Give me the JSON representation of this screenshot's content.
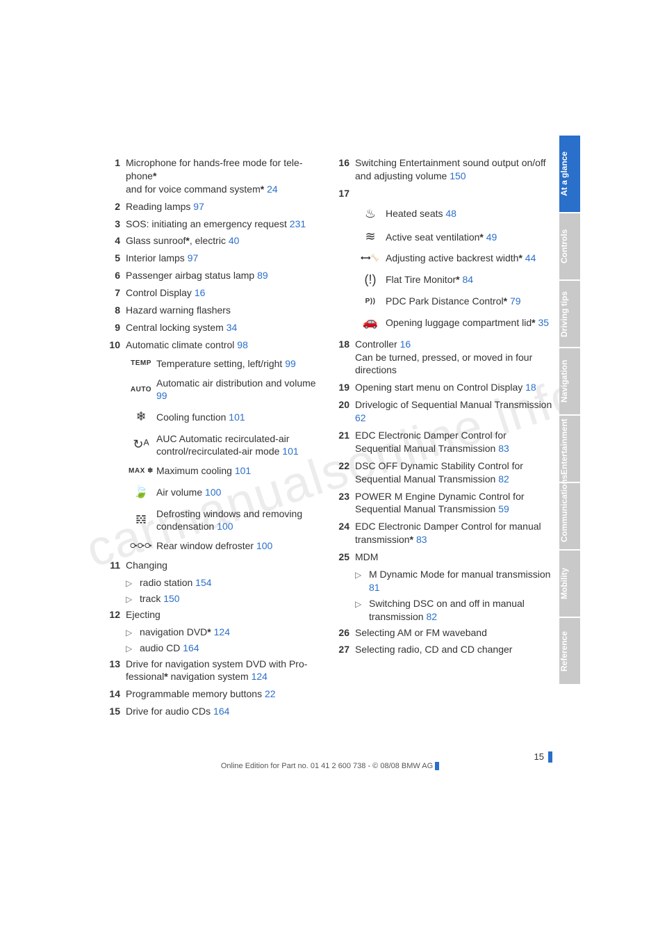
{
  "watermark": "carmanualsonline.info",
  "page_number": "15",
  "edition_line": "Online Edition for Part no. 01 41 2 600 738 - © 08/08 BMW AG",
  "link_color": "#2a6fc9",
  "tab_active_bg": "#2a6fc9",
  "tab_inactive_bg": "#c9c9c9",
  "tabs": [
    {
      "label": "At a glance",
      "active": true
    },
    {
      "label": "Controls",
      "active": false
    },
    {
      "label": "Driving tips",
      "active": false
    },
    {
      "label": "Navigation",
      "active": false
    },
    {
      "label": "Entertainment",
      "active": false
    },
    {
      "label": "Communications",
      "active": false
    },
    {
      "label": "Mobility",
      "active": false
    },
    {
      "label": "Reference",
      "active": false
    }
  ],
  "left_items": [
    {
      "n": "1",
      "text_a": "Microphone for hands-free mode for tele­phone",
      "star_a": true,
      "br": true,
      "text_b": "and for voice command system",
      "star_b": true,
      "page": "24"
    },
    {
      "n": "2",
      "text_a": "Reading lamps",
      "page": "97"
    },
    {
      "n": "3",
      "text_a": "SOS: initiating an emergency request",
      "page": "231"
    },
    {
      "n": "4",
      "text_a": "Glass sunroof",
      "star_a": true,
      "text_b": ", electric",
      "page": "40"
    },
    {
      "n": "5",
      "text_a": "Interior lamps",
      "page": "97"
    },
    {
      "n": "6",
      "text_a": "Passenger airbag status lamp",
      "page": "89"
    },
    {
      "n": "7",
      "text_a": "Control Display",
      "page": "16"
    },
    {
      "n": "8",
      "text_a": "Hazard warning flashers"
    },
    {
      "n": "9",
      "text_a": "Central locking system",
      "page": "34"
    },
    {
      "n": "10",
      "text_a": "Automatic climate control",
      "page": "98"
    }
  ],
  "climate_icons": [
    {
      "icon": "TEMP",
      "small": true,
      "text": "Temperature setting, left/right",
      "page": "99"
    },
    {
      "icon": "AUTO",
      "small": true,
      "text": "Automatic air distribution and volume",
      "page": "99"
    },
    {
      "icon": "❄",
      "text": "Cooling function",
      "page": "101"
    },
    {
      "icon": "↻ᴬ",
      "text": "AUC Automatic recirculated-air control/recirculated-air mode",
      "page": "101"
    },
    {
      "icon": "MAX ❄",
      "small": true,
      "text": "Maximum cooling",
      "page": "101"
    },
    {
      "icon": "🍃",
      "text": "Air volume",
      "page": "100"
    },
    {
      "icon": "𝌸",
      "text": "Defrosting windows and removing condensation",
      "page": "100"
    },
    {
      "icon": "⧂⧂⧂",
      "small": true,
      "text": "Rear window defroster",
      "page": "100"
    }
  ],
  "left_items2": [
    {
      "n": "11",
      "text_a": "Changing",
      "subs": [
        {
          "text": "radio station",
          "page": "154"
        },
        {
          "text": "track",
          "page": "150"
        }
      ]
    },
    {
      "n": "12",
      "text_a": "Ejecting",
      "subs": [
        {
          "text": "navigation DVD",
          "star": true,
          "page": "124"
        },
        {
          "text": "audio CD",
          "page": "164"
        }
      ]
    },
    {
      "n": "13",
      "text_a": "Drive for navigation system DVD with Pro­fessional",
      "star_a": true,
      "text_b": " navigation system",
      "page": "124"
    },
    {
      "n": "14",
      "text_a": "Programmable memory buttons",
      "page": "22"
    },
    {
      "n": "15",
      "text_a": "Drive for audio CDs",
      "page": "164"
    }
  ],
  "right_items_top": [
    {
      "n": "16",
      "text_a": "Switching Entertainment sound output on/off and adjusting volume",
      "page": "150"
    },
    {
      "n": "17",
      "text_a": ""
    }
  ],
  "seat_icons": [
    {
      "icon": "♨",
      "text": "Heated seats",
      "page": "48"
    },
    {
      "icon": "≋",
      "text": "Active seat ventilation",
      "star": true,
      "page": "49"
    },
    {
      "icon": "⟷🦴",
      "small": true,
      "text": "Adjusting active backrest width",
      "star": true,
      "page": "44"
    },
    {
      "icon": "(!)",
      "text": "Flat Tire Monitor",
      "star": true,
      "page": "84"
    },
    {
      "icon": "P))",
      "small": true,
      "text": "PDC Park Distance Control",
      "star": true,
      "page": "79"
    },
    {
      "icon": "🚗",
      "text": "Opening luggage compartment lid",
      "star": true,
      "page": "35"
    }
  ],
  "right_items": [
    {
      "n": "18",
      "text_a": "Controller",
      "page": "16",
      "after": "Can be turned, pressed, or moved in four directions"
    },
    {
      "n": "19",
      "text_a": "Opening start menu on Control Display",
      "page": "18"
    },
    {
      "n": "20",
      "text_a": "Drivelogic of Sequential Manual Transmission",
      "page": "62"
    },
    {
      "n": "21",
      "text_a": "EDC Electronic Damper Control for Sequential Manual Transmission",
      "page": "83"
    },
    {
      "n": "22",
      "text_a": "DSC OFF Dynamic Stability Control for Sequential Manual Transmission",
      "page": "82"
    },
    {
      "n": "23",
      "text_a": "POWER M Engine Dynamic Control for Sequential Manual Transmission",
      "page": "59"
    },
    {
      "n": "24",
      "text_a": "EDC Electronic Damper Control for manual transmission",
      "star_a": true,
      "page": "83"
    },
    {
      "n": "25",
      "text_a": "MDM",
      "subs": [
        {
          "text": "M Dynamic Mode for manual transmission",
          "page": "81"
        },
        {
          "text": "Switching DSC on and off in manual transmission",
          "page": "82"
        }
      ]
    },
    {
      "n": "26",
      "text_a": "Selecting AM or FM waveband"
    },
    {
      "n": "27",
      "text_a": "Selecting radio, CD and CD changer"
    }
  ]
}
